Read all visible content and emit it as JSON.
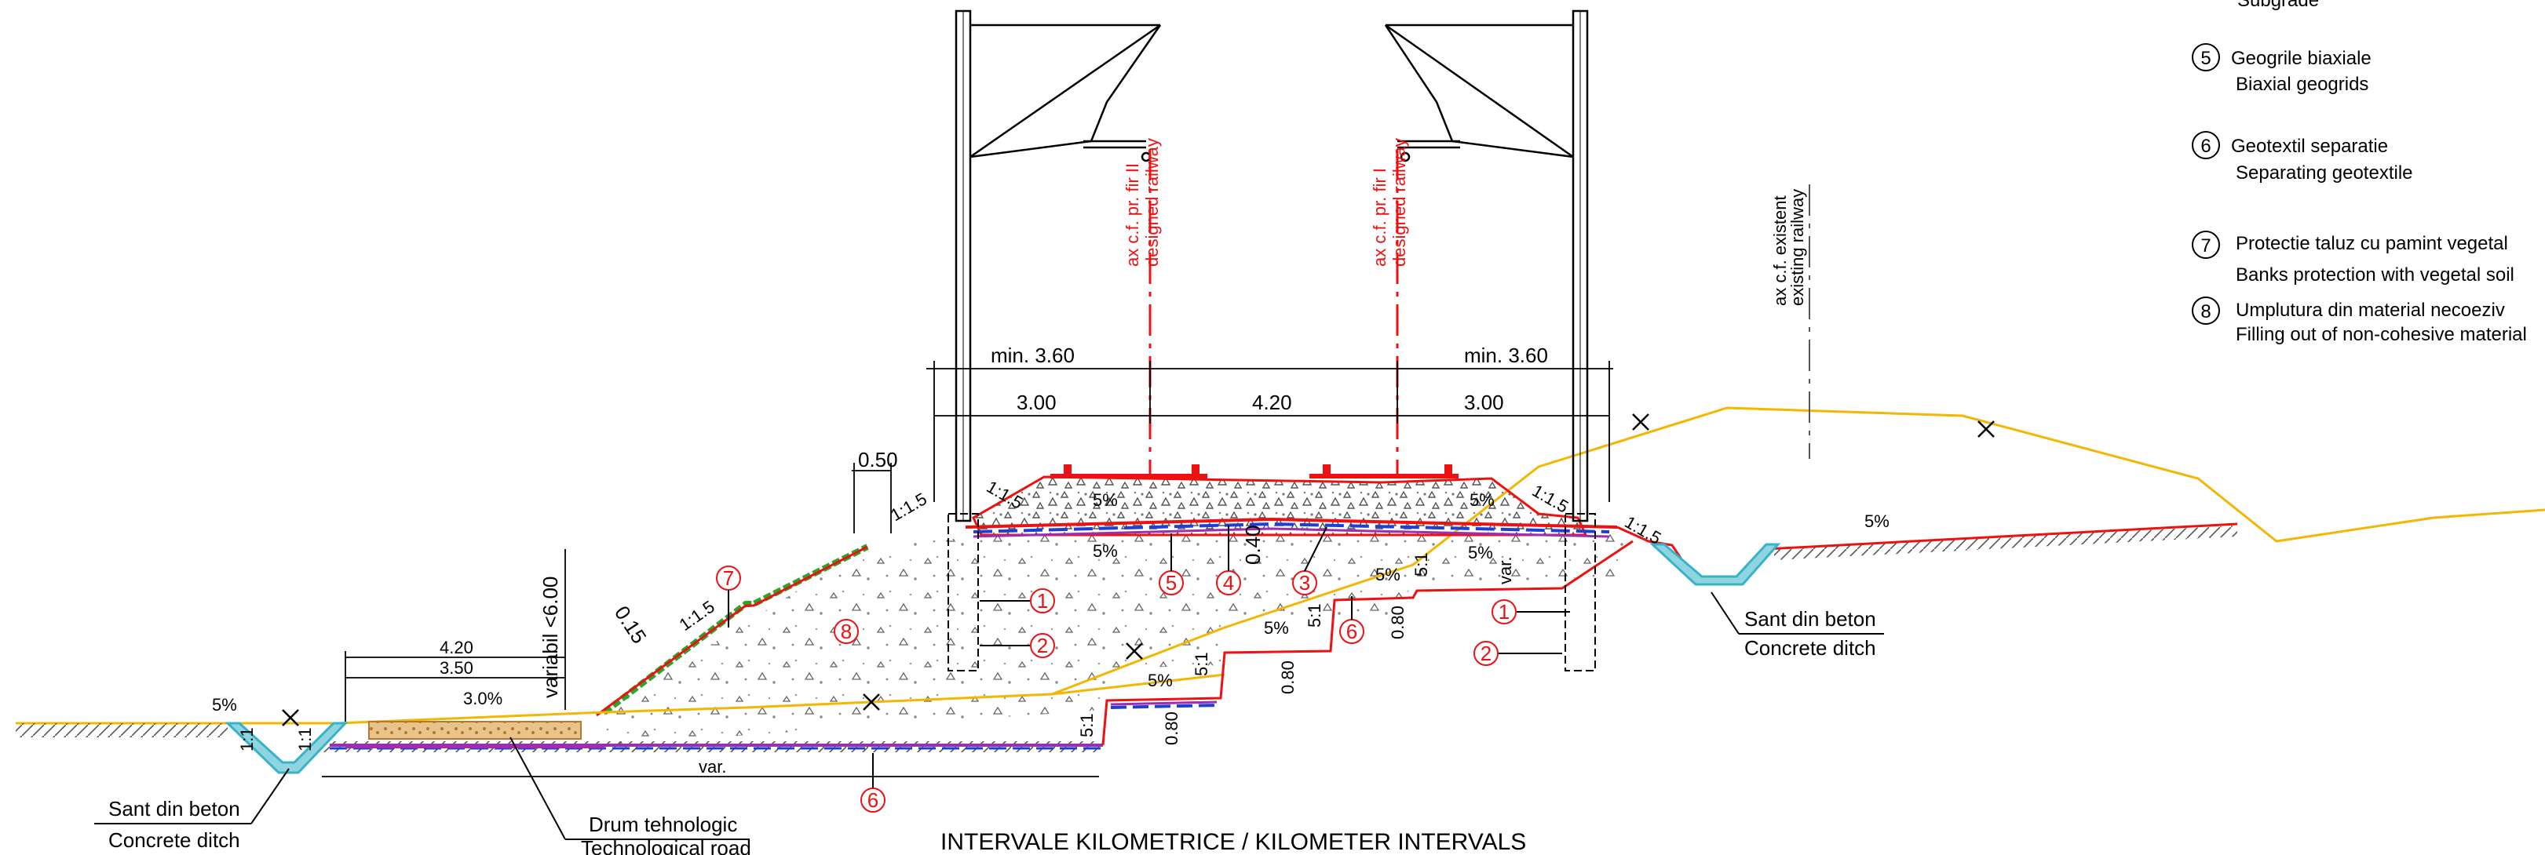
{
  "title": "INTERVALE KILOMETRICE / KILOMETER INTERVALS",
  "axes": {
    "track_ii": [
      "ax c.f. pr. fir II",
      "designed railway"
    ],
    "track_i": [
      "ax c.f. pr. fir I",
      "designed railway"
    ],
    "existing": [
      "ax c.f. existent",
      "existing railway"
    ]
  },
  "dimensions": {
    "min_left": "min. 3.60",
    "min_right": "min. 3.60",
    "d300_left": "3.00",
    "d420_mid": "4.20",
    "d300_right": "3.00",
    "d050": "0.50",
    "d040": "0.40",
    "d015": "0.15",
    "variabil": "variabil <6.00",
    "road_420": "4.20",
    "road_350": "3.50",
    "var_bottom": "var.",
    "var_right": "var.",
    "d080_a": "0.80",
    "d080_b": "0.80",
    "d080_c": "0.80"
  },
  "slopes": {
    "s11_5": "1:1.5",
    "ratio_51": "5:1",
    "pct5": "5%",
    "pct30": "3.0%",
    "s11": "1:1"
  },
  "labels": {
    "ditch_left": [
      "Sant din beton",
      "Concrete ditch"
    ],
    "ditch_right": [
      "Sant din beton",
      "Concrete ditch"
    ],
    "road": [
      "Drum tehnologic",
      "Technological road"
    ]
  },
  "markers": [
    "1",
    "2",
    "3",
    "4",
    "5",
    "6",
    "7",
    "8"
  ],
  "legend": [
    {
      "num": "",
      "ro": "Subgrade",
      "en": ""
    },
    {
      "num": "5",
      "ro": "Geogrile biaxiale",
      "en": "Biaxial geogrids"
    },
    {
      "num": "6",
      "ro": "Geotextil separatie",
      "en": "Separating geotextile"
    },
    {
      "num": "7",
      "ro": "Protectie taluz cu pamint vegetal",
      "en": "Banks protection with vegetal soil"
    },
    {
      "num": "8",
      "ro": "Umplutura din material necoeziv",
      "en": "Filling out of non-cohesive material"
    }
  ],
  "colors": {
    "line": "#000000",
    "red_axis": "#e11111",
    "ground": "#f2b705",
    "geogrid": "#1f3fd1",
    "geotextile": "#9b2fb0",
    "grass": "#2aa52a",
    "ditch": "#37b3c9",
    "road_fill": "#e3b46c"
  }
}
